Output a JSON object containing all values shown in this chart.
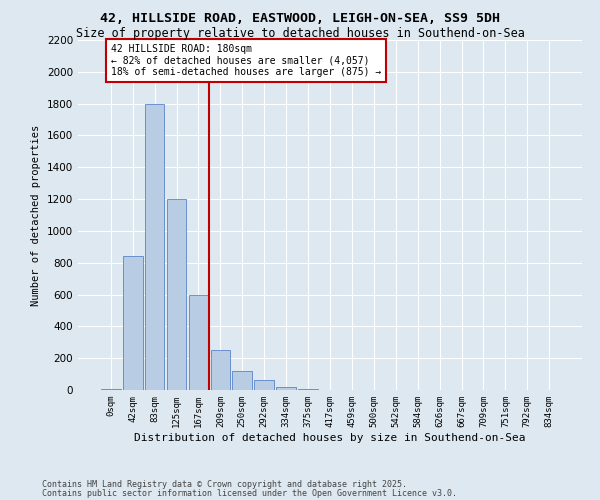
{
  "title1": "42, HILLSIDE ROAD, EASTWOOD, LEIGH-ON-SEA, SS9 5DH",
  "title2": "Size of property relative to detached houses in Southend-on-Sea",
  "xlabel": "Distribution of detached houses by size in Southend-on-Sea",
  "ylabel": "Number of detached properties",
  "bin_labels": [
    "0sqm",
    "42sqm",
    "83sqm",
    "125sqm",
    "167sqm",
    "209sqm",
    "250sqm",
    "292sqm",
    "334sqm",
    "375sqm",
    "417sqm",
    "459sqm",
    "500sqm",
    "542sqm",
    "584sqm",
    "626sqm",
    "667sqm",
    "709sqm",
    "751sqm",
    "792sqm",
    "834sqm"
  ],
  "bar_heights": [
    5,
    840,
    1800,
    1200,
    600,
    250,
    120,
    60,
    20,
    5,
    2,
    0,
    0,
    0,
    0,
    0,
    0,
    0,
    0,
    0,
    0
  ],
  "bar_color": "#b8cce4",
  "bar_edge_color": "#4472c4",
  "vline_x": 4.5,
  "vline_color": "#c00000",
  "annotation_text": "42 HILLSIDE ROAD: 180sqm\n← 82% of detached houses are smaller (4,057)\n18% of semi-detached houses are larger (875) →",
  "annotation_box_color": "#ffffff",
  "annotation_edge_color": "#c00000",
  "bg_color": "#dde8f0",
  "plot_bg_color": "#dde8f0",
  "footnote1": "Contains HM Land Registry data © Crown copyright and database right 2025.",
  "footnote2": "Contains public sector information licensed under the Open Government Licence v3.0.",
  "ylim": [
    0,
    2200
  ],
  "yticks": [
    0,
    200,
    400,
    600,
    800,
    1000,
    1200,
    1400,
    1600,
    1800,
    2000,
    2200
  ]
}
